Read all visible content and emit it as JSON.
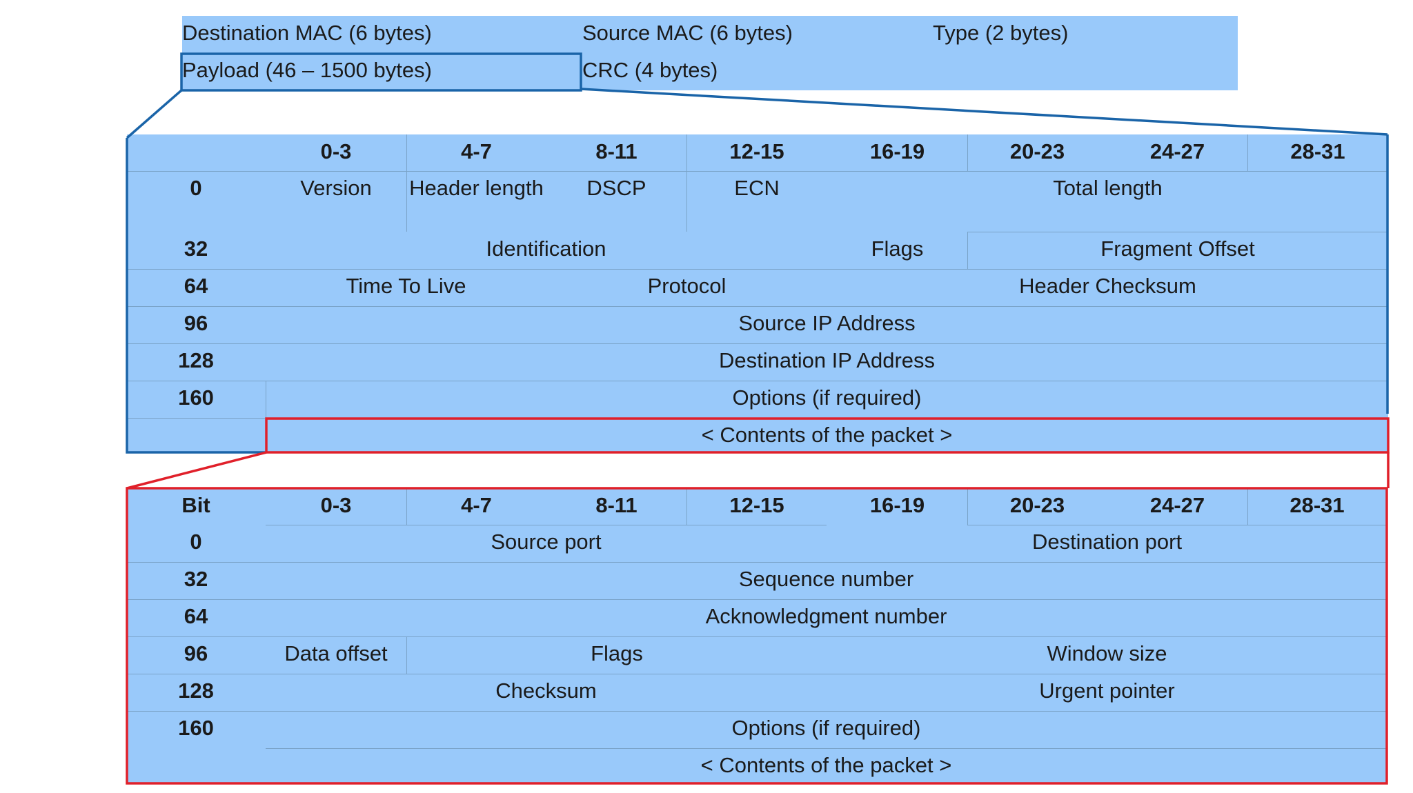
{
  "ethernet": {
    "dest_mac": "Destination MAC (6 bytes)",
    "src_mac": "Source MAC (6 bytes)",
    "type": "Type (2 bytes)",
    "payload": "Payload (46 – 1500 bytes)",
    "crc": "CRC (4 bytes)"
  },
  "ip": {
    "bit_ranges": [
      "0-3",
      "4-7",
      "8-11",
      "12-15",
      "16-19",
      "20-23",
      "24-27",
      "28-31"
    ],
    "offsets": [
      "0",
      "32",
      "64",
      "96",
      "128",
      "160"
    ],
    "version": "Version",
    "header_length": "Header length",
    "dscp": "DSCP",
    "ecn": "ECN",
    "total_length": "Total length",
    "identification": "Identification",
    "flags": "Flags",
    "fragment_offset": "Fragment Offset",
    "ttl": "Time To Live",
    "protocol": "Protocol",
    "header_checksum": "Header Checksum",
    "source_ip": "Source IP Address",
    "dest_ip": "Destination IP Address",
    "options": "Options (if required)",
    "contents": "< Contents of the packet >"
  },
  "tcp": {
    "bit_label": "Bit",
    "bit_ranges": [
      "0-3",
      "4-7",
      "8-11",
      "12-15",
      "16-19",
      "20-23",
      "24-27",
      "28-31"
    ],
    "offsets": [
      "0",
      "32",
      "64",
      "96",
      "128",
      "160"
    ],
    "source_port": "Source port",
    "dest_port": "Destination port",
    "sequence_number": "Sequence number",
    "ack_number": "Acknowledgment number",
    "data_offset": "Data offset",
    "flags": "Flags",
    "window_size": "Window size",
    "checksum": "Checksum",
    "urgent_pointer": "Urgent pointer",
    "options": "Options (if required)",
    "contents": "< Contents of the packet >"
  },
  "colors": {
    "fill": "#99c9fa",
    "ip_outline": "#1a64a8",
    "tcp_outline": "#e0202a"
  }
}
